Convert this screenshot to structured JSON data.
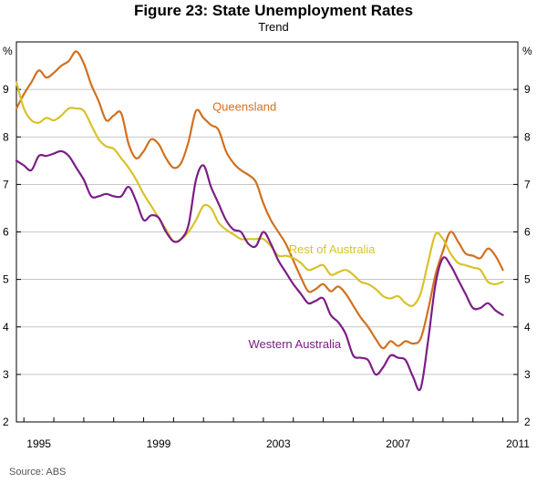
{
  "chart_data": {
    "type": "line",
    "title": "Figure 23: State Unemployment Rates",
    "subtitle": "Trend",
    "ylabel_left": "%",
    "ylabel_right": "%",
    "ylim": [
      2,
      10
    ],
    "yticks": [
      2,
      3,
      4,
      5,
      6,
      7,
      8,
      9
    ],
    "xlim": [
      1994.75,
      2011.5
    ],
    "xticks": [
      1995,
      1999,
      2003,
      2007,
      2011
    ],
    "xtick_labels": [
      "1995",
      "1999",
      "2003",
      "2007",
      "2011"
    ],
    "source": "Source: ABS",
    "series": [
      {
        "name": "Queensland",
        "color": "#d2701f",
        "points": [
          [
            1994.75,
            8.6
          ],
          [
            1995.0,
            8.9
          ],
          [
            1995.25,
            9.15
          ],
          [
            1995.5,
            9.4
          ],
          [
            1995.75,
            9.25
          ],
          [
            1996.0,
            9.35
          ],
          [
            1996.25,
            9.5
          ],
          [
            1996.5,
            9.6
          ],
          [
            1996.75,
            9.8
          ],
          [
            1997.0,
            9.55
          ],
          [
            1997.25,
            9.1
          ],
          [
            1997.5,
            8.75
          ],
          [
            1997.75,
            8.35
          ],
          [
            1998.0,
            8.45
          ],
          [
            1998.25,
            8.5
          ],
          [
            1998.5,
            7.85
          ],
          [
            1998.75,
            7.55
          ],
          [
            1999.0,
            7.7
          ],
          [
            1999.25,
            7.95
          ],
          [
            1999.5,
            7.85
          ],
          [
            1999.75,
            7.55
          ],
          [
            2000.0,
            7.35
          ],
          [
            2000.25,
            7.45
          ],
          [
            2000.5,
            7.9
          ],
          [
            2000.75,
            8.55
          ],
          [
            2001.0,
            8.4
          ],
          [
            2001.25,
            8.25
          ],
          [
            2001.5,
            8.15
          ],
          [
            2001.75,
            7.7
          ],
          [
            2002.0,
            7.45
          ],
          [
            2002.25,
            7.3
          ],
          [
            2002.5,
            7.2
          ],
          [
            2002.75,
            7.05
          ],
          [
            2003.0,
            6.6
          ],
          [
            2003.25,
            6.25
          ],
          [
            2003.5,
            6.0
          ],
          [
            2003.75,
            5.75
          ],
          [
            2004.0,
            5.4
          ],
          [
            2004.25,
            5.05
          ],
          [
            2004.5,
            4.75
          ],
          [
            2004.75,
            4.8
          ],
          [
            2005.0,
            4.9
          ],
          [
            2005.25,
            4.75
          ],
          [
            2005.5,
            4.85
          ],
          [
            2005.75,
            4.7
          ],
          [
            2006.0,
            4.45
          ],
          [
            2006.25,
            4.2
          ],
          [
            2006.5,
            4.0
          ],
          [
            2006.75,
            3.75
          ],
          [
            2007.0,
            3.55
          ],
          [
            2007.25,
            3.7
          ],
          [
            2007.5,
            3.6
          ],
          [
            2007.75,
            3.7
          ],
          [
            2008.0,
            3.65
          ],
          [
            2008.25,
            3.75
          ],
          [
            2008.5,
            4.35
          ],
          [
            2008.75,
            5.1
          ],
          [
            2009.0,
            5.6
          ],
          [
            2009.25,
            6.0
          ],
          [
            2009.5,
            5.8
          ],
          [
            2009.75,
            5.55
          ],
          [
            2010.0,
            5.5
          ],
          [
            2010.25,
            5.45
          ],
          [
            2010.5,
            5.65
          ],
          [
            2010.75,
            5.5
          ],
          [
            2011.0,
            5.2
          ]
        ]
      },
      {
        "name": "Rest of Australia",
        "color": "#d8c22a",
        "points": [
          [
            1994.75,
            9.15
          ],
          [
            1995.0,
            8.6
          ],
          [
            1995.25,
            8.35
          ],
          [
            1995.5,
            8.3
          ],
          [
            1995.75,
            8.4
          ],
          [
            1996.0,
            8.35
          ],
          [
            1996.25,
            8.45
          ],
          [
            1996.5,
            8.6
          ],
          [
            1996.75,
            8.6
          ],
          [
            1997.0,
            8.55
          ],
          [
            1997.25,
            8.25
          ],
          [
            1997.5,
            7.95
          ],
          [
            1997.75,
            7.8
          ],
          [
            1998.0,
            7.75
          ],
          [
            1998.25,
            7.55
          ],
          [
            1998.5,
            7.35
          ],
          [
            1998.75,
            7.1
          ],
          [
            1999.0,
            6.8
          ],
          [
            1999.25,
            6.55
          ],
          [
            1999.5,
            6.3
          ],
          [
            1999.75,
            6.05
          ],
          [
            2000.0,
            5.8
          ],
          [
            2000.25,
            5.85
          ],
          [
            2000.5,
            6.0
          ],
          [
            2000.75,
            6.25
          ],
          [
            2001.0,
            6.55
          ],
          [
            2001.25,
            6.5
          ],
          [
            2001.5,
            6.2
          ],
          [
            2001.75,
            6.05
          ],
          [
            2002.0,
            5.95
          ],
          [
            2002.25,
            5.85
          ],
          [
            2002.5,
            5.85
          ],
          [
            2002.75,
            5.85
          ],
          [
            2003.0,
            5.85
          ],
          [
            2003.25,
            5.7
          ],
          [
            2003.5,
            5.5
          ],
          [
            2003.75,
            5.5
          ],
          [
            2004.0,
            5.45
          ],
          [
            2004.25,
            5.35
          ],
          [
            2004.5,
            5.2
          ],
          [
            2004.75,
            5.25
          ],
          [
            2005.0,
            5.3
          ],
          [
            2005.25,
            5.1
          ],
          [
            2005.5,
            5.15
          ],
          [
            2005.75,
            5.2
          ],
          [
            2006.0,
            5.1
          ],
          [
            2006.25,
            4.95
          ],
          [
            2006.5,
            4.9
          ],
          [
            2006.75,
            4.8
          ],
          [
            2007.0,
            4.65
          ],
          [
            2007.25,
            4.6
          ],
          [
            2007.5,
            4.65
          ],
          [
            2007.75,
            4.5
          ],
          [
            2008.0,
            4.45
          ],
          [
            2008.25,
            4.7
          ],
          [
            2008.5,
            5.35
          ],
          [
            2008.75,
            5.95
          ],
          [
            2009.0,
            5.85
          ],
          [
            2009.25,
            5.55
          ],
          [
            2009.5,
            5.35
          ],
          [
            2009.75,
            5.3
          ],
          [
            2010.0,
            5.25
          ],
          [
            2010.25,
            5.2
          ],
          [
            2010.5,
            4.95
          ],
          [
            2010.75,
            4.9
          ],
          [
            2011.0,
            4.95
          ]
        ]
      },
      {
        "name": "Western Australia",
        "color": "#7c1d86",
        "points": [
          [
            1994.75,
            7.5
          ],
          [
            1995.0,
            7.4
          ],
          [
            1995.25,
            7.3
          ],
          [
            1995.5,
            7.6
          ],
          [
            1995.75,
            7.6
          ],
          [
            1996.0,
            7.65
          ],
          [
            1996.25,
            7.7
          ],
          [
            1996.5,
            7.6
          ],
          [
            1996.75,
            7.35
          ],
          [
            1997.0,
            7.1
          ],
          [
            1997.25,
            6.75
          ],
          [
            1997.5,
            6.75
          ],
          [
            1997.75,
            6.8
          ],
          [
            1998.0,
            6.75
          ],
          [
            1998.25,
            6.75
          ],
          [
            1998.5,
            6.95
          ],
          [
            1998.75,
            6.65
          ],
          [
            1999.0,
            6.25
          ],
          [
            1999.25,
            6.35
          ],
          [
            1999.5,
            6.3
          ],
          [
            1999.75,
            6.0
          ],
          [
            2000.0,
            5.8
          ],
          [
            2000.25,
            5.85
          ],
          [
            2000.5,
            6.15
          ],
          [
            2000.75,
            7.1
          ],
          [
            2001.0,
            7.4
          ],
          [
            2001.25,
            6.95
          ],
          [
            2001.5,
            6.6
          ],
          [
            2001.75,
            6.25
          ],
          [
            2002.0,
            6.05
          ],
          [
            2002.25,
            6.0
          ],
          [
            2002.5,
            5.75
          ],
          [
            2002.75,
            5.7
          ],
          [
            2003.0,
            6.0
          ],
          [
            2003.25,
            5.75
          ],
          [
            2003.5,
            5.4
          ],
          [
            2003.75,
            5.15
          ],
          [
            2004.0,
            4.9
          ],
          [
            2004.25,
            4.7
          ],
          [
            2004.5,
            4.5
          ],
          [
            2004.75,
            4.55
          ],
          [
            2005.0,
            4.6
          ],
          [
            2005.25,
            4.25
          ],
          [
            2005.5,
            4.1
          ],
          [
            2005.75,
            3.85
          ],
          [
            2006.0,
            3.4
          ],
          [
            2006.25,
            3.35
          ],
          [
            2006.5,
            3.3
          ],
          [
            2006.75,
            3.0
          ],
          [
            2007.0,
            3.15
          ],
          [
            2007.25,
            3.4
          ],
          [
            2007.5,
            3.35
          ],
          [
            2007.75,
            3.3
          ],
          [
            2008.0,
            2.95
          ],
          [
            2008.25,
            2.7
          ],
          [
            2008.5,
            3.7
          ],
          [
            2008.75,
            4.9
          ],
          [
            2009.0,
            5.45
          ],
          [
            2009.25,
            5.3
          ],
          [
            2009.5,
            5.0
          ],
          [
            2009.75,
            4.7
          ],
          [
            2010.0,
            4.4
          ],
          [
            2010.25,
            4.4
          ],
          [
            2010.5,
            4.5
          ],
          [
            2010.75,
            4.35
          ],
          [
            2011.0,
            4.25
          ]
        ]
      }
    ],
    "annotations": [
      {
        "text": "Queensland",
        "series": "Queensland",
        "x": 2001.3,
        "y": 8.55
      },
      {
        "text": "Rest of Australia",
        "series": "Rest of Australia",
        "x": 2003.85,
        "y": 5.55
      },
      {
        "text": "Western Australia",
        "series": "Western Australia",
        "x": 2002.5,
        "y": 3.55
      }
    ]
  }
}
